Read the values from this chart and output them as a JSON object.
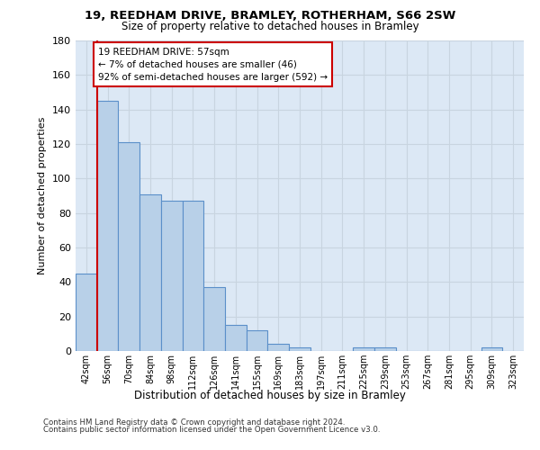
{
  "title_line1": "19, REEDHAM DRIVE, BRAMLEY, ROTHERHAM, S66 2SW",
  "title_line2": "Size of property relative to detached houses in Bramley",
  "xlabel": "Distribution of detached houses by size in Bramley",
  "ylabel": "Number of detached properties",
  "footer_line1": "Contains HM Land Registry data © Crown copyright and database right 2024.",
  "footer_line2": "Contains public sector information licensed under the Open Government Licence v3.0.",
  "categories": [
    "42sqm",
    "56sqm",
    "70sqm",
    "84sqm",
    "98sqm",
    "112sqm",
    "126sqm",
    "141sqm",
    "155sqm",
    "169sqm",
    "183sqm",
    "197sqm",
    "211sqm",
    "225sqm",
    "239sqm",
    "253sqm",
    "267sqm",
    "281sqm",
    "295sqm",
    "309sqm",
    "323sqm"
  ],
  "values": [
    45,
    145,
    121,
    91,
    87,
    87,
    37,
    15,
    12,
    4,
    2,
    0,
    0,
    2,
    2,
    0,
    0,
    0,
    0,
    2,
    0
  ],
  "bar_color": "#b8d0e8",
  "bar_edge_color": "#5b8fc9",
  "grid_color": "#c8d4e0",
  "annotation_box_text": "19 REEDHAM DRIVE: 57sqm\n← 7% of detached houses are smaller (46)\n92% of semi-detached houses are larger (592) →",
  "vline_color": "#cc0000",
  "ylim": [
    0,
    180
  ],
  "yticks": [
    0,
    20,
    40,
    60,
    80,
    100,
    120,
    140,
    160,
    180
  ],
  "plot_bg_color": "#dce8f5"
}
